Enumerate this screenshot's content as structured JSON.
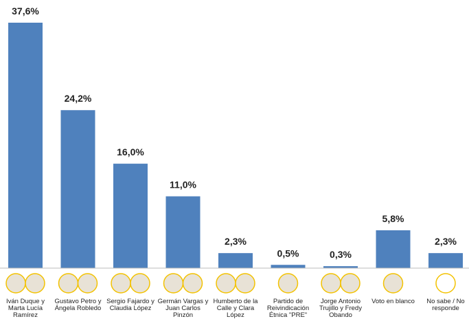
{
  "chart_data": {
    "type": "bar",
    "categories": [
      "Iván Duque y Marta Lucía Ramírez",
      "Gustavo Petro y Ángela Robledo",
      "Sergio Fajardo y Claudia López",
      "Germán Vargas y Juan Carlos Pinzón",
      "Humberto de la Calle y Clara López",
      "Partido de Reivindicación Étnica \"PRE\"",
      "Jorge Antonio Trujillo y Fredy Obando",
      "Voto en blanco",
      "No sabe / No responde"
    ],
    "values": [
      37.6,
      24.2,
      16.0,
      11.0,
      2.3,
      0.5,
      0.3,
      5.8,
      2.3
    ],
    "value_labels": [
      "37,6%",
      "24,2%",
      "16,0%",
      "11,0%",
      "2,3%",
      "0,5%",
      "0,3%",
      "5,8%",
      "2,3%"
    ],
    "color": "#4f81bd"
  }
}
